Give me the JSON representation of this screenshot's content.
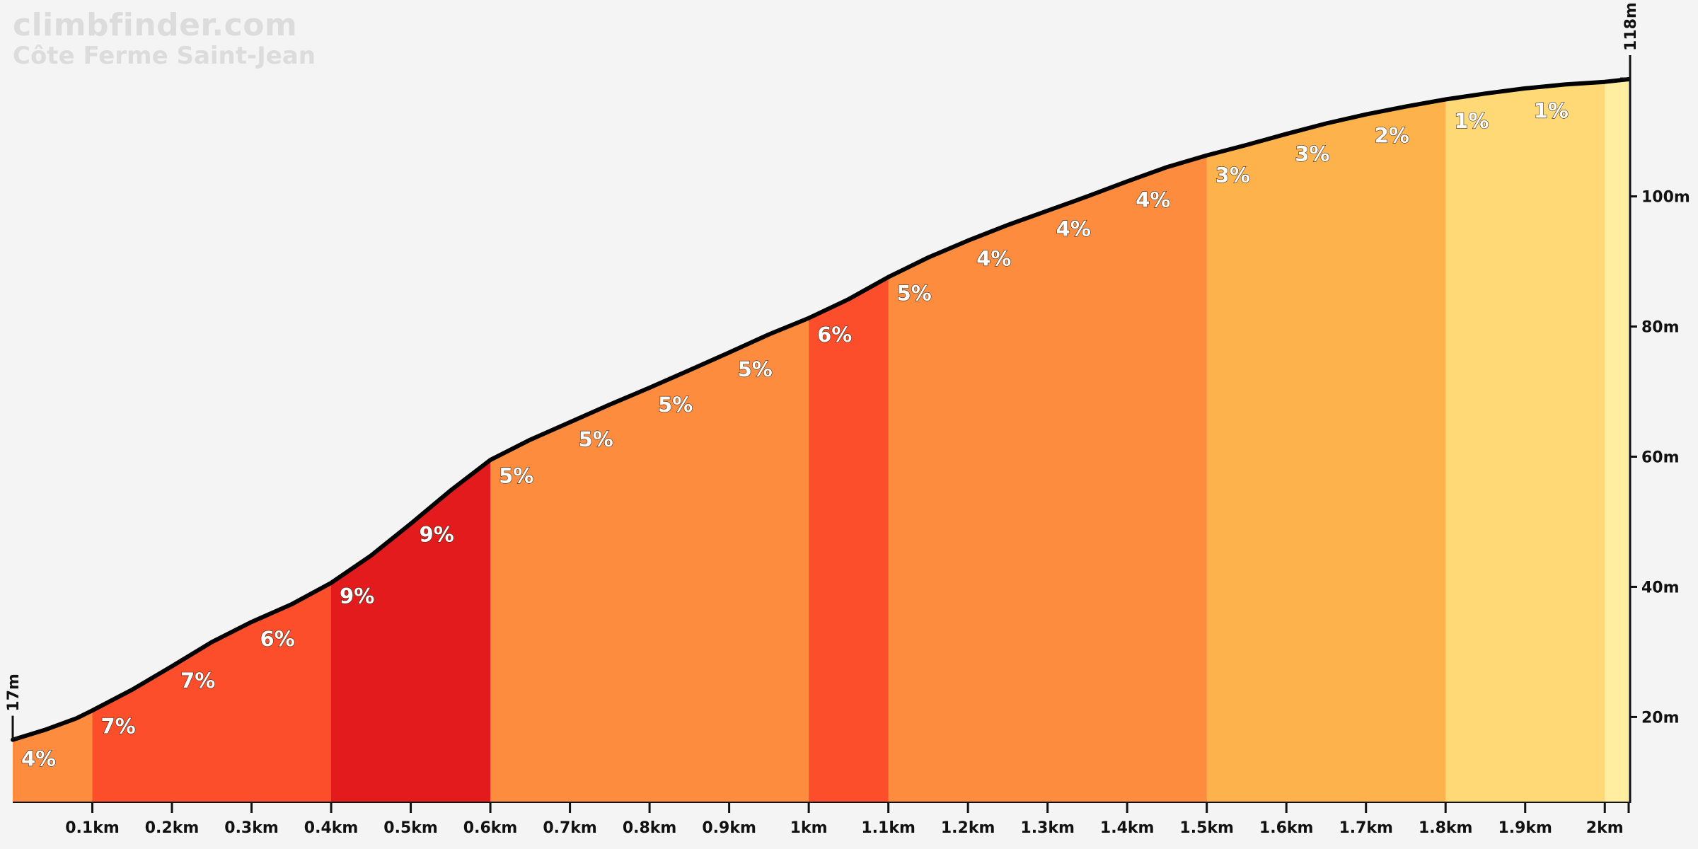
{
  "header": {
    "site": "climbfinder.com",
    "climb_name": "Côte Ferme Saint-Jean"
  },
  "chart_data": {
    "type": "area",
    "x_unit": "km",
    "y_unit": "m",
    "xlim": [
      0,
      2.03
    ],
    "ylim": [
      7,
      118
    ],
    "start_elevation_label": "17m",
    "end_elevation_label": "118m",
    "profile": {
      "x": [
        0,
        0.04,
        0.08,
        0.1,
        0.15,
        0.2,
        0.25,
        0.3,
        0.35,
        0.4,
        0.45,
        0.5,
        0.55,
        0.6,
        0.65,
        0.7,
        0.75,
        0.8,
        0.85,
        0.9,
        0.95,
        1.0,
        1.05,
        1.1,
        1.15,
        1.2,
        1.25,
        1.3,
        1.35,
        1.4,
        1.45,
        1.5,
        1.55,
        1.6,
        1.65,
        1.7,
        1.75,
        1.8,
        1.85,
        1.9,
        1.95,
        2.0,
        2.03
      ],
      "y": [
        16.5,
        18,
        19.8,
        21,
        24.2,
        27.8,
        31.5,
        34.6,
        37.3,
        40.6,
        44.8,
        49.7,
        54.8,
        59.5,
        62.6,
        65.3,
        68.0,
        70.6,
        73.3,
        76.0,
        78.8,
        81.3,
        84.2,
        87.6,
        90.6,
        93.2,
        95.6,
        97.8,
        100.0,
        102.3,
        104.5,
        106.3,
        107.9,
        109.6,
        111.2,
        112.6,
        113.8,
        114.9,
        115.8,
        116.6,
        117.2,
        117.6,
        118.0
      ]
    },
    "segments": [
      {
        "start": 0.0,
        "end": 0.1,
        "grade": "4%",
        "color": "#fd8c3e"
      },
      {
        "start": 0.1,
        "end": 0.4,
        "grade": "7%",
        "color": "#fc4e2b"
      },
      {
        "start": 0.4,
        "end": 0.6,
        "grade": "9%",
        "color": "#e31b1c"
      },
      {
        "start": 0.6,
        "end": 1.0,
        "grade": "5%",
        "color": "#fd8c3e"
      },
      {
        "start": 1.0,
        "end": 1.1,
        "grade": "6%",
        "color": "#fc4e2b"
      },
      {
        "start": 1.1,
        "end": 1.5,
        "grade": "4%",
        "color": "#fd8c3e"
      },
      {
        "start": 1.5,
        "end": 1.8,
        "grade": "3%",
        "color": "#feb24c"
      },
      {
        "start": 1.8,
        "end": 2.0,
        "grade": "1%",
        "color": "#fed976"
      },
      {
        "start": 2.0,
        "end": 2.03,
        "grade": "",
        "color": "#ffeda0"
      }
    ],
    "grade_labels": [
      {
        "x": 0.0,
        "text": "4%"
      },
      {
        "x": 0.1,
        "text": "7%"
      },
      {
        "x": 0.2,
        "text": "7%"
      },
      {
        "x": 0.3,
        "text": "6%"
      },
      {
        "x": 0.4,
        "text": "9%"
      },
      {
        "x": 0.5,
        "text": "9%"
      },
      {
        "x": 0.6,
        "text": "5%"
      },
      {
        "x": 0.7,
        "text": "5%"
      },
      {
        "x": 0.8,
        "text": "5%"
      },
      {
        "x": 0.9,
        "text": "5%"
      },
      {
        "x": 1.0,
        "text": "6%"
      },
      {
        "x": 1.1,
        "text": "5%"
      },
      {
        "x": 1.2,
        "text": "4%"
      },
      {
        "x": 1.3,
        "text": "4%"
      },
      {
        "x": 1.4,
        "text": "4%"
      },
      {
        "x": 1.5,
        "text": "3%"
      },
      {
        "x": 1.6,
        "text": "3%"
      },
      {
        "x": 1.7,
        "text": "2%"
      },
      {
        "x": 1.8,
        "text": "1%"
      },
      {
        "x": 1.9,
        "text": "1%"
      }
    ],
    "x_ticks": [
      {
        "value": 0.1,
        "label": "0.1km"
      },
      {
        "value": 0.2,
        "label": "0.2km"
      },
      {
        "value": 0.3,
        "label": "0.3km"
      },
      {
        "value": 0.4,
        "label": "0.4km"
      },
      {
        "value": 0.5,
        "label": "0.5km"
      },
      {
        "value": 0.6,
        "label": "0.6km"
      },
      {
        "value": 0.7,
        "label": "0.7km"
      },
      {
        "value": 0.8,
        "label": "0.8km"
      },
      {
        "value": 0.9,
        "label": "0.9km"
      },
      {
        "value": 1.0,
        "label": "1km"
      },
      {
        "value": 1.1,
        "label": "1.1km"
      },
      {
        "value": 1.2,
        "label": "1.2km"
      },
      {
        "value": 1.3,
        "label": "1.3km"
      },
      {
        "value": 1.4,
        "label": "1.4km"
      },
      {
        "value": 1.5,
        "label": "1.5km"
      },
      {
        "value": 1.6,
        "label": "1.6km"
      },
      {
        "value": 1.7,
        "label": "1.7km"
      },
      {
        "value": 1.8,
        "label": "1.8km"
      },
      {
        "value": 1.9,
        "label": "1.9km"
      },
      {
        "value": 2.0,
        "label": "2km"
      }
    ],
    "y_ticks": [
      {
        "value": 20,
        "label": "20m"
      },
      {
        "value": 40,
        "label": "40m"
      },
      {
        "value": 60,
        "label": "60m"
      },
      {
        "value": 80,
        "label": "80m"
      },
      {
        "value": 100,
        "label": "100m"
      }
    ],
    "line_color": "#000000",
    "background_color": "#f4f4f4",
    "grid": false,
    "legend": "none"
  }
}
